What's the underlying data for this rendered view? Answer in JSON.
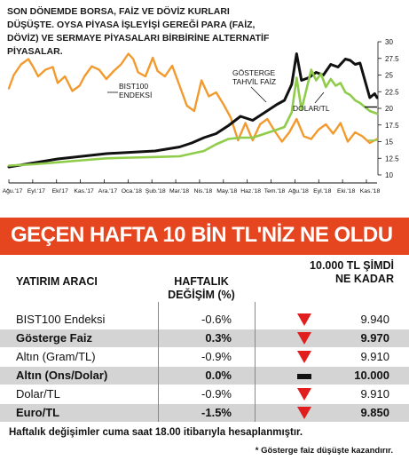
{
  "chart_data": {
    "type": "line",
    "title": "SON DÖNEMDE BORSA, FAİZ VE DÖVİZ KURLARI DÜŞÜŞTE. OYSA PİYASA İŞLEYİŞİ GEREĞİ PARA (FAİZ, DÖVİZ) VE SERMAYE PİYASALARI BİRBİRİNE ALTERNATİF PİYASALAR.",
    "xlabel": "",
    "ylabel": "",
    "x_ticks": [
      "Ağu.'17",
      "Eyl.'17",
      "Eki'17",
      "Kas.'17",
      "Ara.'17",
      "Oca.'18",
      "Şub.'18",
      "Mar.'18",
      "Nis.'18",
      "May.'18",
      "Haz.'18",
      "Tem.'18",
      "Ağu.'18",
      "Eyl.'18",
      "Eki.'18",
      "Kas.'18"
    ],
    "y_ticks": [
      10,
      12.5,
      15,
      17.5,
      20,
      22.5,
      25,
      27.5,
      30
    ],
    "ylim": [
      10,
      30
    ],
    "grid": false,
    "annotations": [
      "BIST100 ENDEKSİ",
      "GÖSTERGE TAHVİL FAİZİ",
      "DOLAR/TL"
    ],
    "series": [
      {
        "name": "BIST100 ENDEKSİ",
        "color": "#f29a2e",
        "x": [
          0,
          0.2,
          0.5,
          0.8,
          1,
          1.2,
          1.5,
          1.8,
          2,
          2.3,
          2.6,
          2.9,
          3.1,
          3.4,
          3.7,
          4,
          4.3,
          4.6,
          4.9,
          5.1,
          5.3,
          5.6,
          5.9,
          6.1,
          6.4,
          6.7,
          7,
          7.3,
          7.6,
          7.9,
          8.2,
          8.5,
          8.8,
          9.1,
          9.4,
          9.7,
          10,
          10.3,
          10.6,
          10.9,
          11.2,
          11.5,
          11.8,
          12.1,
          12.4,
          12.7,
          13,
          13.3,
          13.6,
          13.9,
          14.2,
          14.5,
          14.8,
          15.1
        ],
        "values": [
          23,
          25,
          26.6,
          27.4,
          26.2,
          24.8,
          25.8,
          26.2,
          23.8,
          24.8,
          22.6,
          23.4,
          24.8,
          26.3,
          25.8,
          24.4,
          25.6,
          26.6,
          28.2,
          27.4,
          25.4,
          24.8,
          27.6,
          25.6,
          24.8,
          26.4,
          23.4,
          20.4,
          19.6,
          24.2,
          21.8,
          22.4,
          20.6,
          18.6,
          15.2,
          17.8,
          15.2,
          17.6,
          18.4,
          16.6,
          15,
          16.4,
          18.4,
          15.8,
          15.4,
          16.8,
          17.6,
          16.2,
          17.8,
          15,
          16.4,
          15.8,
          14.8,
          15.4
        ]
      },
      {
        "name": "GÖSTERGE TAHVİL FAİZİ",
        "color": "#111111",
        "x": [
          0,
          1,
          2,
          3,
          4,
          5,
          6,
          7,
          7.5,
          8,
          8.5,
          9,
          9.5,
          10,
          10.5,
          11,
          11.3,
          11.6,
          11.8,
          12,
          12.3,
          12.6,
          12.9,
          13.2,
          13.5,
          13.8,
          14,
          14.2,
          14.4,
          14.6,
          14.8,
          15,
          15.1
        ],
        "values": [
          11.2,
          11.8,
          12.4,
          12.8,
          13.2,
          13.4,
          13.6,
          14.2,
          14.8,
          15.6,
          16.2,
          17.4,
          18.8,
          18.2,
          19.4,
          20.6,
          21.2,
          23.6,
          28.2,
          24.2,
          24.6,
          25.4,
          25,
          26.6,
          26.2,
          27.4,
          27.2,
          26.6,
          26.8,
          24.2,
          21.6,
          22.2,
          21.6
        ]
      },
      {
        "name": "DOLAR/TL",
        "color": "#8fcc4a",
        "x": [
          0,
          1,
          2,
          3,
          4,
          5,
          6,
          7,
          7.5,
          8,
          8.5,
          9,
          9.5,
          10,
          10.5,
          11,
          11.3,
          11.6,
          11.8,
          12,
          12.2,
          12.4,
          12.6,
          12.8,
          13,
          13.2,
          13.4,
          13.6,
          13.8,
          14,
          14.2,
          14.4,
          14.6,
          14.8,
          15.1
        ],
        "values": [
          11.4,
          11.6,
          11.9,
          12.2,
          12.5,
          12.6,
          12.7,
          12.8,
          13.2,
          13.6,
          14.6,
          15.4,
          15.6,
          15.6,
          16.2,
          16.8,
          17.2,
          19.4,
          24.6,
          19.8,
          22.8,
          25.8,
          24.2,
          25.2,
          23.2,
          24.4,
          23.4,
          23.8,
          22.4,
          22,
          21.2,
          20.8,
          20.2,
          19.6,
          19.2
        ]
      }
    ]
  },
  "banner": {
    "title": "GEÇEN HAFTA 10 BİN TL'NİZ NE OLDU"
  },
  "table": {
    "headers": {
      "col1": "YATIRIM ARACI",
      "col2": "HAFTALIK DEĞİŞİM (%)",
      "col3": "10.000 TL ŞİMDİ NE KADAR"
    },
    "rows": [
      {
        "name": "BIST100 Endeksi",
        "change": "-0.6%",
        "amount": "9.940",
        "indicator": "down",
        "bold": false
      },
      {
        "name": "Gösterge Faiz",
        "change": "0.3%",
        "amount": "9.970",
        "indicator": "down",
        "bold": true
      },
      {
        "name": "Altın (Gram/TL)",
        "change": "-0.9%",
        "amount": "9.910",
        "indicator": "down",
        "bold": false
      },
      {
        "name": "Altın (Ons/Dolar)",
        "change": "0.0%",
        "amount": "10.000",
        "indicator": "flat",
        "bold": true
      },
      {
        "name": "Dolar/TL",
        "change": "-0.9%",
        "amount": "9.910",
        "indicator": "down",
        "bold": false
      },
      {
        "name": "Euro/TL",
        "change": "-1.5%",
        "amount": "9.850",
        "indicator": "down",
        "bold": true
      }
    ]
  },
  "footnotes": {
    "line1": "Haftalık değişimler cuma saat 18.00 itibarıyla hesaplanmıştır.",
    "line2": "* Gösterge faiz düşüşte kazandırır."
  },
  "colors": {
    "accent": "#e5461f",
    "down": "#e11d1d",
    "shade": "#d4d4d4"
  }
}
